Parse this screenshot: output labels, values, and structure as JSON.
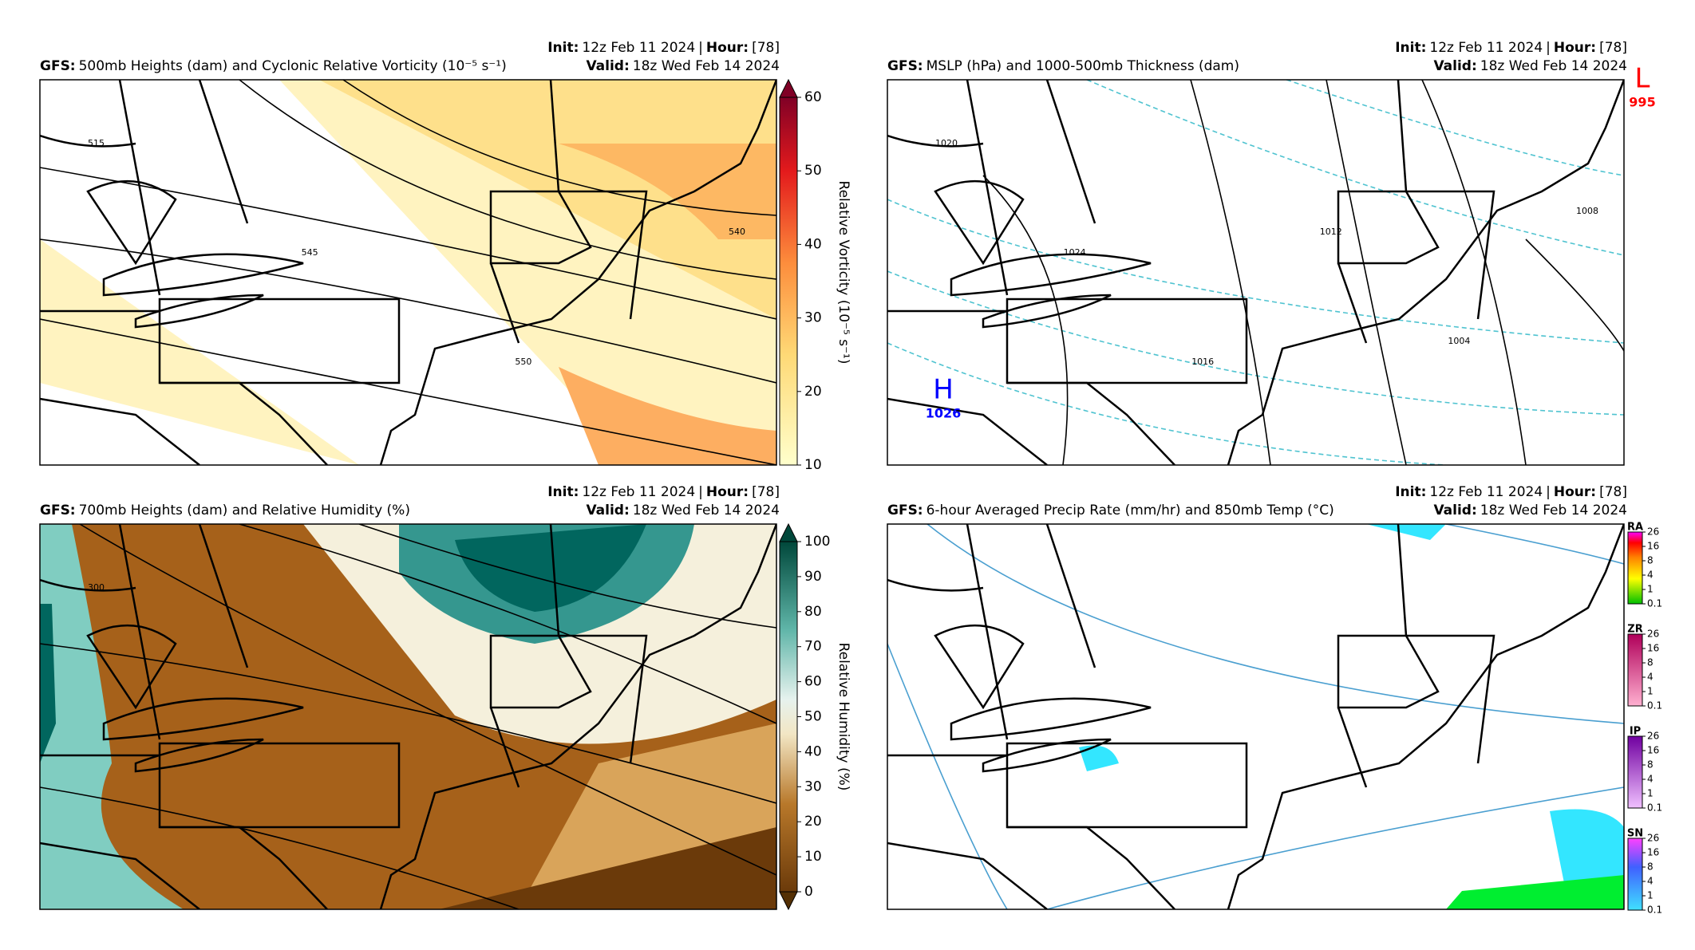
{
  "panels": [
    {
      "model": "GFS:",
      "title": "500mb Heights (dam) and Cyclonic Relative Vorticity (10⁻⁵ s⁻¹)",
      "init_label": "Init:",
      "init": "12z Feb 11 2024",
      "sep": "|",
      "hour_label": "Hour:",
      "hour": "[78]",
      "valid_label": "Valid:",
      "valid": "18z Wed Feb 14 2024",
      "colorbar": {
        "label": "Relative Vorticity (10⁻⁵ s⁻¹)",
        "ticks": [
          60,
          50,
          40,
          30,
          20,
          10
        ]
      },
      "contour_labels": [
        "515",
        "545",
        "550",
        "540"
      ]
    },
    {
      "model": "GFS:",
      "title": "MSLP (hPa) and 1000-500mb Thickness (dam)",
      "init_label": "Init:",
      "init": "12z Feb 11 2024",
      "sep": "|",
      "hour_label": "Hour:",
      "hour": "[78]",
      "valid_label": "Valid:",
      "valid": "18z Wed Feb 14 2024",
      "contour_labels": [
        "1020",
        "1024",
        "1016",
        "1012",
        "1004",
        "1008"
      ],
      "centers": [
        {
          "letter": "L",
          "value": "995",
          "color": "#ff0000"
        },
        {
          "letter": "H",
          "value": "1026",
          "color": "#0000ff"
        }
      ]
    },
    {
      "model": "GFS:",
      "title": "700mb Heights (dam) and Relative Humidity (%)",
      "init_label": "Init:",
      "init": "12z Feb 11 2024",
      "sep": "|",
      "hour_label": "Hour:",
      "hour": "[78]",
      "valid_label": "Valid:",
      "valid": "18z Wed Feb 14 2024",
      "colorbar": {
        "label": "Relative Humidity (%)",
        "ticks": [
          100,
          90,
          80,
          70,
          60,
          50,
          40,
          30,
          20,
          10,
          0
        ]
      },
      "contour_labels": [
        "300"
      ]
    },
    {
      "model": "GFS:",
      "title": "6-hour Averaged Precip Rate (mm/hr) and 850mb Temp (°C)",
      "init_label": "Init:",
      "init": "12z Feb 11 2024",
      "sep": "|",
      "hour_label": "Hour:",
      "hour": "[78]",
      "valid_label": "Valid:",
      "valid": "18z Wed Feb 14 2024",
      "precip_bars": [
        {
          "name": "RA",
          "ticks": [
            26,
            16,
            8,
            4,
            1,
            0.1
          ]
        },
        {
          "name": "ZR",
          "ticks": [
            26,
            16,
            8,
            4,
            1,
            0.1
          ]
        },
        {
          "name": "IP",
          "ticks": [
            26,
            16,
            8,
            4,
            1,
            0.1
          ]
        },
        {
          "name": "SN",
          "ticks": [
            26,
            16,
            8,
            4,
            1,
            0.1
          ]
        }
      ]
    }
  ]
}
